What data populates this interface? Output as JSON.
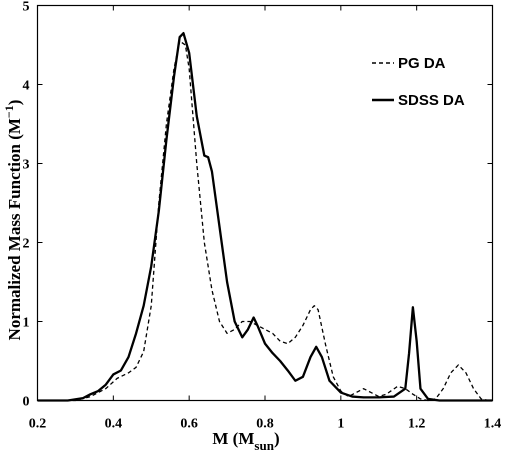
{
  "chart_data": {
    "type": "line",
    "xlabel": "M (M",
    "xlabel_sub": "sun",
    "xlabel_close": ")",
    "ylabel": "Normalized Mass Function (M",
    "ylabel_sup": "−1",
    "ylabel_close": ")",
    "xlim": [
      0.2,
      1.4
    ],
    "ylim": [
      0,
      5
    ],
    "x_ticks": [
      "0.2",
      "0.4",
      "0.6",
      "0.8",
      "1",
      "1.2",
      "1.4"
    ],
    "y_ticks": [
      "0",
      "1",
      "2",
      "3",
      "4",
      "5"
    ],
    "legend_position": "top-right",
    "grid": false,
    "series": [
      {
        "name": "PG DA",
        "style": "dashed",
        "color": "#000000",
        "x": [
          0.2,
          0.3,
          0.34,
          0.38,
          0.41,
          0.44,
          0.46,
          0.48,
          0.5,
          0.52,
          0.54,
          0.56,
          0.575,
          0.59,
          0.6,
          0.62,
          0.64,
          0.66,
          0.68,
          0.7,
          0.72,
          0.74,
          0.76,
          0.78,
          0.8,
          0.82,
          0.84,
          0.86,
          0.88,
          0.9,
          0.92,
          0.93,
          0.94,
          0.96,
          0.98,
          1.0,
          1.02,
          1.04,
          1.06,
          1.08,
          1.1,
          1.12,
          1.15,
          1.17,
          1.19,
          1.21,
          1.23,
          1.25,
          1.27,
          1.29,
          1.31,
          1.33,
          1.35,
          1.37,
          1.39,
          1.4
        ],
        "values": [
          0,
          0,
          0.05,
          0.15,
          0.28,
          0.35,
          0.42,
          0.62,
          1.2,
          2.5,
          3.5,
          4.2,
          4.55,
          4.5,
          4.2,
          3.0,
          2.0,
          1.4,
          1.0,
          0.85,
          0.9,
          1.0,
          1.0,
          0.95,
          0.9,
          0.85,
          0.75,
          0.72,
          0.8,
          0.95,
          1.15,
          1.2,
          1.15,
          0.7,
          0.3,
          0.12,
          0.05,
          0.1,
          0.15,
          0.1,
          0.05,
          0.08,
          0.18,
          0.15,
          0.08,
          0.02,
          0.0,
          0.02,
          0.15,
          0.35,
          0.45,
          0.35,
          0.15,
          0.02,
          0.0,
          0.0
        ]
      },
      {
        "name": "SDSS DA",
        "style": "solid",
        "color": "#000000",
        "x": [
          0.2,
          0.28,
          0.32,
          0.34,
          0.36,
          0.38,
          0.4,
          0.42,
          0.44,
          0.46,
          0.48,
          0.5,
          0.52,
          0.54,
          0.56,
          0.575,
          0.585,
          0.6,
          0.62,
          0.64,
          0.65,
          0.66,
          0.68,
          0.7,
          0.72,
          0.74,
          0.755,
          0.77,
          0.78,
          0.8,
          0.82,
          0.84,
          0.86,
          0.88,
          0.9,
          0.92,
          0.935,
          0.95,
          0.97,
          1.0,
          1.03,
          1.06,
          1.1,
          1.14,
          1.17,
          1.18,
          1.19,
          1.2,
          1.21,
          1.23,
          1.26,
          1.3,
          1.35,
          1.4
        ],
        "values": [
          0,
          0,
          0.03,
          0.08,
          0.12,
          0.2,
          0.33,
          0.38,
          0.55,
          0.85,
          1.2,
          1.7,
          2.4,
          3.3,
          4.1,
          4.6,
          4.65,
          4.4,
          3.6,
          3.1,
          3.08,
          2.9,
          2.2,
          1.5,
          1.0,
          0.8,
          0.9,
          1.05,
          0.95,
          0.72,
          0.6,
          0.5,
          0.38,
          0.25,
          0.3,
          0.55,
          0.68,
          0.55,
          0.25,
          0.1,
          0.05,
          0.04,
          0.04,
          0.05,
          0.15,
          0.6,
          1.18,
          0.75,
          0.15,
          0.02,
          0.0,
          0.0,
          0.0,
          0.0
        ]
      }
    ]
  }
}
